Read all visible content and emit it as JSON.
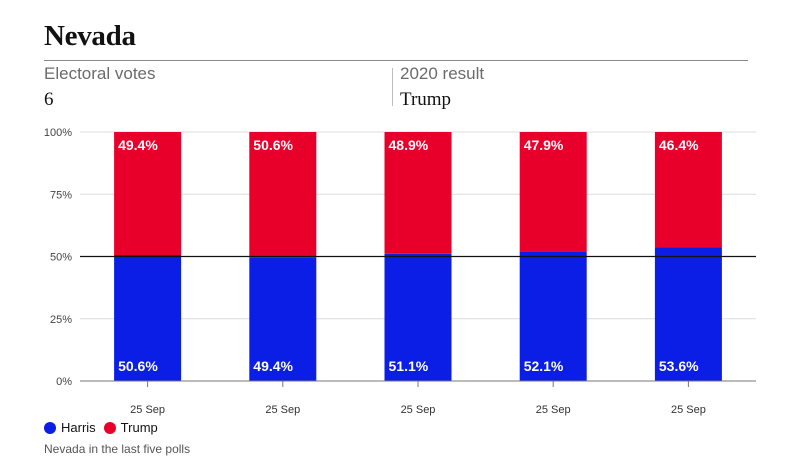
{
  "header": {
    "title": "Nevada",
    "electoral_label": "Electoral votes",
    "electoral_value": "6",
    "result_label": "2020 result",
    "result_value": "Trump"
  },
  "colors": {
    "harris": "#0a1ee6",
    "trump": "#e8002a"
  },
  "legend": [
    {
      "name": "Harris",
      "color": "#0a1ee6"
    },
    {
      "name": "Trump",
      "color": "#e8002a"
    }
  ],
  "footnote": "Nevada in the last five polls",
  "chart_data": {
    "type": "bar",
    "stacked": true,
    "categories": [
      "25 Sep",
      "25 Sep",
      "25 Sep",
      "25 Sep",
      "25 Sep"
    ],
    "series": [
      {
        "name": "Harris",
        "values": [
          50.6,
          49.4,
          51.1,
          52.1,
          53.6
        ],
        "labels": [
          "50.6%",
          "49.4%",
          "51.1%",
          "52.1%",
          "53.6%"
        ]
      },
      {
        "name": "Trump",
        "values": [
          49.4,
          50.6,
          48.9,
          47.9,
          46.4
        ],
        "labels": [
          "49.4%",
          "50.6%",
          "48.9%",
          "47.9%",
          "46.4%"
        ]
      }
    ],
    "ylim": [
      0,
      100
    ],
    "yticks": [
      "0%",
      "25%",
      "50%",
      "75%",
      "100%"
    ],
    "reference_line": 50,
    "grid": true
  }
}
